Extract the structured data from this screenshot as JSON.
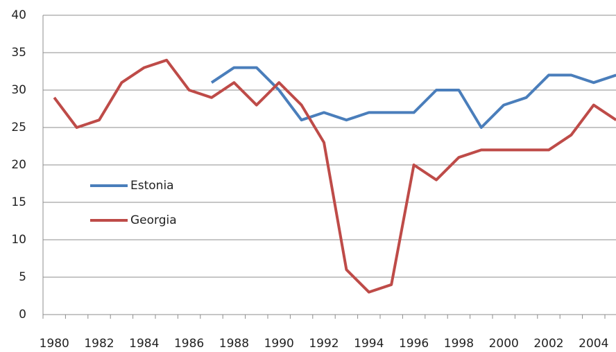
{
  "chart_data": {
    "type": "line",
    "categories": [
      "1980",
      null,
      "1982",
      null,
      "1984",
      null,
      "1986",
      null,
      "1988",
      null,
      "1990",
      null,
      "1992",
      null,
      "1994",
      null,
      "1996",
      null,
      "1998",
      null,
      "2000",
      null,
      "2002",
      null,
      "2004",
      null
    ],
    "series": [
      {
        "name": "Estonia",
        "color": "#4a7ebb",
        "values": [
          null,
          null,
          null,
          null,
          null,
          null,
          null,
          31,
          33,
          33,
          30,
          26,
          27,
          26,
          27,
          27,
          27,
          30,
          30,
          25,
          28,
          29,
          32,
          32,
          31,
          32
        ]
      },
      {
        "name": "Georgia",
        "color": "#be4b48",
        "values": [
          29,
          25,
          26,
          31,
          33,
          34,
          30,
          29,
          31,
          28,
          31,
          28,
          23,
          6,
          3,
          4,
          20,
          18,
          21,
          22,
          22,
          22,
          22,
          24,
          28,
          26
        ]
      }
    ],
    "ylim": [
      0,
      40
    ],
    "yticks": [
      0,
      5,
      10,
      15,
      20,
      25,
      30,
      35,
      40
    ],
    "grid": true,
    "legend": "center-left"
  }
}
